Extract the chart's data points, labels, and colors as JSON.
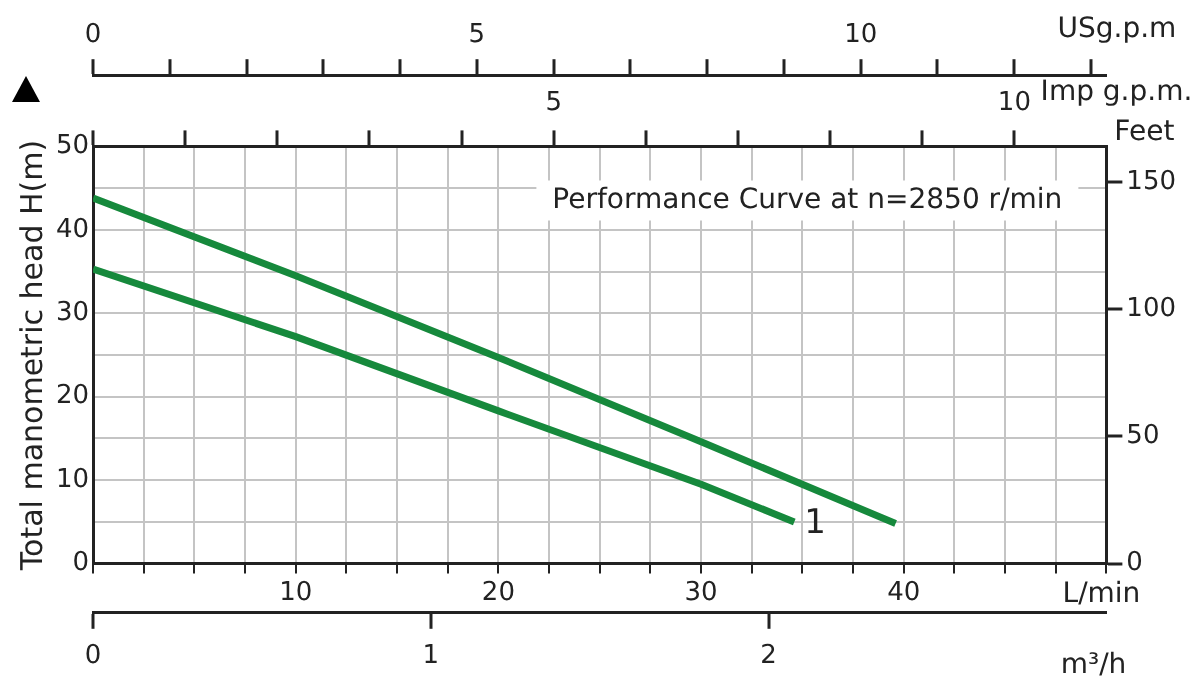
{
  "chart_data": {
    "type": "line",
    "ylabel": "Total manometric head H(m)",
    "y2label": "Feet",
    "xlabel": "L/min",
    "x2label": "USg.p.m",
    "annotations": [
      "Performance Curve at n=2850 r/min",
      "Imp g.p.m.",
      "5",
      "10",
      "m³/h",
      "0",
      "1",
      "2"
    ],
    "xlim": [
      0,
      50
    ],
    "xticks": [
      {
        "value": 0,
        "label": null
      },
      {
        "value": 2.5,
        "label": null
      },
      {
        "value": 5,
        "label": null
      },
      {
        "value": 7.5,
        "label": null
      },
      10,
      {
        "value": 12.5,
        "label": null
      },
      {
        "value": 15,
        "label": null
      },
      {
        "value": 17.5,
        "label": null
      },
      20,
      {
        "value": 22.5,
        "label": null
      },
      {
        "value": 25,
        "label": null
      },
      {
        "value": 27.5,
        "label": null
      },
      30,
      {
        "value": 32.5,
        "label": null
      },
      {
        "value": 35,
        "label": null
      },
      {
        "value": 37.5,
        "label": null
      },
      40,
      {
        "value": 42.5,
        "label": null
      },
      {
        "value": 45,
        "label": null
      },
      {
        "value": 47.5,
        "label": null
      },
      {
        "value": 50,
        "label": null
      }
    ],
    "x2lim": [
      0,
      13.2
    ],
    "x2ticks": [
      0,
      5,
      10
    ],
    "ylim": [
      0,
      50
    ],
    "yticks": [
      0,
      {
        "value": 5,
        "label": null
      },
      10,
      {
        "value": 15,
        "label": null
      },
      20,
      {
        "value": 25,
        "label": null
      },
      30,
      {
        "value": 35,
        "label": null
      },
      40,
      {
        "value": 45,
        "label": null
      },
      50
    ],
    "y2lim": [
      0,
      164
    ],
    "y2ticks": [
      0,
      50,
      100,
      150
    ],
    "grid": true,
    "marker": "none",
    "legend": false,
    "series": [
      {
        "name": "1",
        "color": "#16893c",
        "x": [
          0,
          10,
          20,
          30,
          34.6
        ],
        "values": [
          35.3,
          27.2,
          18.3,
          9.5,
          5.0
        ]
      },
      {
        "color": "#16893c",
        "x": [
          0,
          10,
          20,
          30,
          39.6
        ],
        "values": [
          43.8,
          34.5,
          24.7,
          14.6,
          4.8
        ]
      }
    ]
  }
}
